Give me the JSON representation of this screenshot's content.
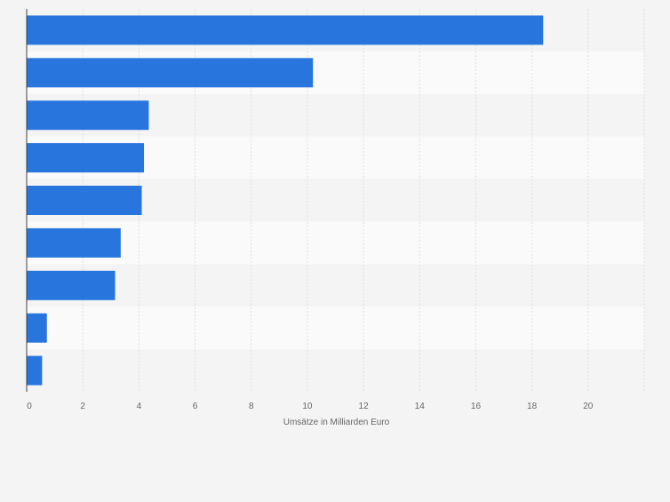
{
  "chart_data": {
    "type": "bar",
    "orientation": "horizontal",
    "title": "",
    "xlabel": "Umsätze in Milliarden Euro",
    "ylabel": "",
    "categories": [
      "",
      "",
      "",
      "",
      "",
      "",
      "",
      "",
      ""
    ],
    "values": [
      18.4,
      10.2,
      4.35,
      4.18,
      4.1,
      3.35,
      3.15,
      0.72,
      0.55
    ],
    "xlim": [
      0,
      22
    ],
    "xticks": [
      0,
      2,
      4,
      6,
      8,
      10,
      12,
      14,
      16,
      18,
      20
    ],
    "grid": true,
    "bar_color": "#2876dd",
    "band_colors": [
      "#f4f4f4",
      "#fafafa"
    ],
    "gridline_color": "#dedede",
    "tick_label_color": "#666666"
  }
}
